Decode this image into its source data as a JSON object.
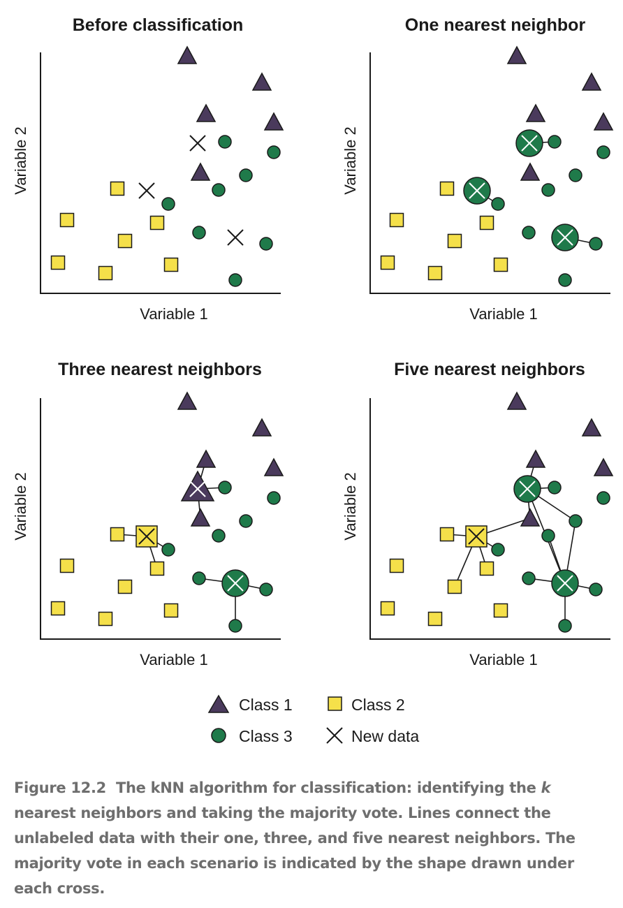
{
  "panels": [
    {
      "title": "Before classification",
      "xlabel": "Variable 1",
      "ylabel": "Variable 2"
    },
    {
      "title": "One nearest neighbor",
      "xlabel": "Variable 1",
      "ylabel": "Variable 2"
    },
    {
      "title": "Three nearest neighbors",
      "xlabel": "Variable 1",
      "ylabel": "Variable 2"
    },
    {
      "title": "Five nearest neighbors",
      "xlabel": "Variable 1",
      "ylabel": "Variable 2"
    }
  ],
  "legend": {
    "class1": "Class 1",
    "class2": "Class 2",
    "class3": "Class 3",
    "new_data": "New data"
  },
  "colors": {
    "class1": "#4a3a5c",
    "class2": "#f5e04a",
    "class3": "#1f7a4a",
    "stroke": "#1a1a1a"
  },
  "caption": {
    "figure_number": "Figure 12.2",
    "text_before_k": "The kNN algorithm for classification: identifying the ",
    "k": "k",
    "text_after_k": " nearest neighbors and taking the majority vote. Lines connect the unlabeled data with their one, three, and five nearest neighbors. The majority vote in each scenario is indicated by the shape drawn under each cross."
  }
}
